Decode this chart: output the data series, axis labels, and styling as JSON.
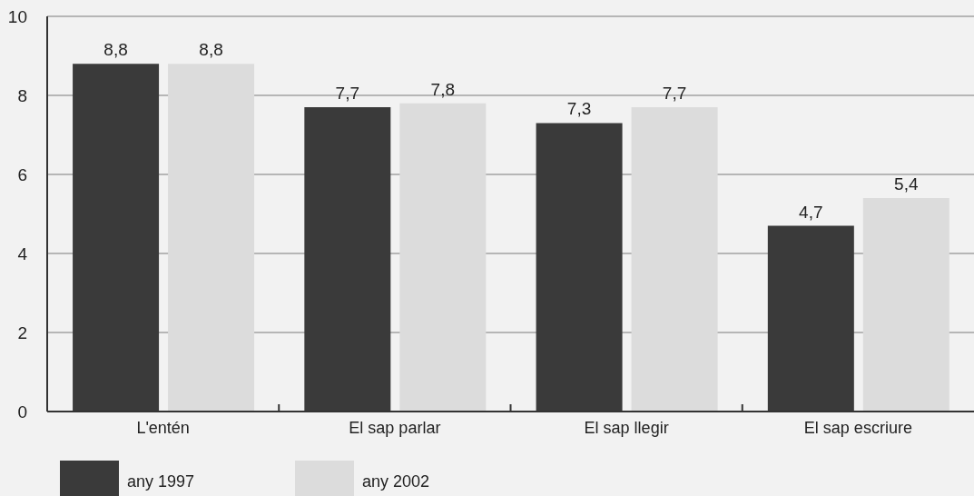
{
  "chart_data": {
    "type": "bar",
    "categories": [
      "L'entén",
      "El sap parlar",
      "El sap llegir",
      "El sap escriure"
    ],
    "series": [
      {
        "name": "any 1997",
        "color": "#3a3a3a",
        "values": [
          8.8,
          7.7,
          7.3,
          4.7
        ],
        "value_labels": [
          "8,8",
          "7,7",
          "7,3",
          "4,7"
        ]
      },
      {
        "name": "any 2002",
        "color": "#dcdcdc",
        "values": [
          8.8,
          7.8,
          7.7,
          5.4
        ],
        "value_labels": [
          "8,8",
          "7,8",
          "7,7",
          "5,4"
        ]
      }
    ],
    "ylim": [
      0,
      10
    ],
    "yticks": [
      0,
      2,
      4,
      6,
      8,
      10
    ],
    "grid": "y",
    "legend": "bottom left"
  }
}
